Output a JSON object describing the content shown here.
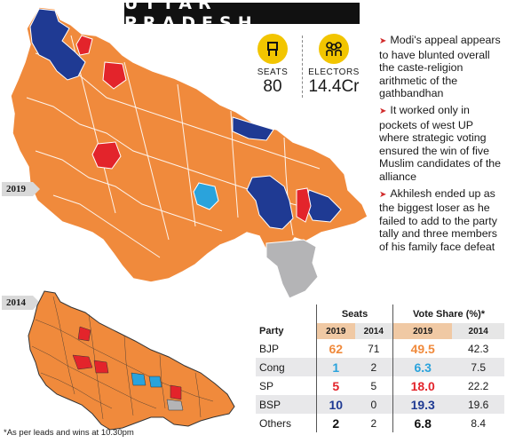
{
  "title": "UTTAR PRADESH",
  "colors": {
    "bjp": "#f08a3c",
    "congress": "#2aa3dc",
    "sp": "#e3242b",
    "bsp": "#1f3a93",
    "others": "#b4b4b6",
    "title_bg": "#111111",
    "icon_yellow": "#f2c500"
  },
  "year_tags": {
    "main_map": "2019",
    "inset_map": "2014"
  },
  "stats": [
    {
      "icon": "chair-icon",
      "label": "SEATS",
      "value": "80"
    },
    {
      "icon": "voters-icon",
      "label": "ELECTORS",
      "value": "14.4Cr"
    }
  ],
  "bullets": [
    "Modi's appeal appears to have blunted overall the caste-religion arithmetic of the gathbandhan",
    "It worked only in pockets of west UP where strategic voting ensured the win of five Muslim candidates of the alliance",
    "Akhilesh ended up as the biggest loser as he failed to add to the party tally and three members of his family face defeat"
  ],
  "table": {
    "header_party": "Party",
    "header_seats": "Seats",
    "header_vote": "Vote Share (%)*",
    "years": [
      "2019",
      "2014",
      "2019",
      "2014"
    ],
    "rows": [
      {
        "party": "BJP",
        "seats_2019": "62",
        "seats_2014": "71",
        "vote_2019": "49.5",
        "vote_2014": "42.3",
        "color": "#f08a3c"
      },
      {
        "party": "Cong",
        "seats_2019": "1",
        "seats_2014": "2",
        "vote_2019": "6.3",
        "vote_2014": "7.5",
        "color": "#2aa3dc"
      },
      {
        "party": "SP",
        "seats_2019": "5",
        "seats_2014": "5",
        "vote_2019": "18.0",
        "vote_2014": "22.2",
        "color": "#e3242b"
      },
      {
        "party": "BSP",
        "seats_2019": "10",
        "seats_2014": "0",
        "vote_2019": "19.3",
        "vote_2014": "19.6",
        "color": "#1f3a93"
      },
      {
        "party": "Others",
        "seats_2019": "2",
        "seats_2014": "2",
        "vote_2019": "6.8",
        "vote_2014": "8.4",
        "color": "#111111"
      }
    ]
  },
  "footnote": "*As per leads and wins at 10.30pm"
}
